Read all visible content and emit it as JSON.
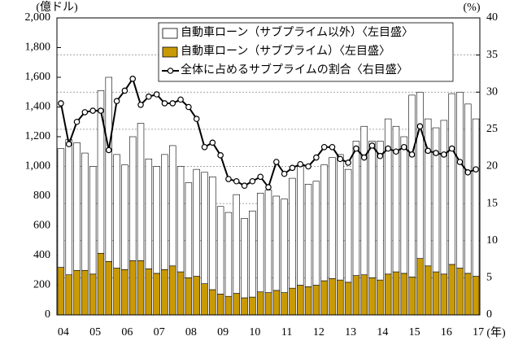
{
  "chart_data": {
    "type": "bar",
    "stacked": true,
    "ylabel": "(億ドル)",
    "y2label": "(%)",
    "xlabel": "(年)",
    "categories": [
      "04",
      null,
      null,
      null,
      "05",
      null,
      null,
      null,
      "06",
      null,
      null,
      null,
      "07",
      null,
      null,
      null,
      "08",
      null,
      null,
      null,
      "09",
      null,
      null,
      null,
      "10",
      null,
      null,
      null,
      "11",
      null,
      null,
      null,
      "12",
      null,
      null,
      null,
      "13",
      null,
      null,
      null,
      "14",
      null,
      null,
      null,
      "15",
      null,
      null,
      null,
      "16",
      null,
      null,
      null,
      "17"
    ],
    "series": [
      {
        "name": "自動車ローン（サブプライム以外）〈左目盛〉",
        "color": "#ffffff",
        "values": [
          800,
          910,
          860,
          790,
          725,
          1095,
          1240,
          765,
          705,
          835,
          925,
          740,
          720,
          775,
          810,
          710,
          640,
          720,
          750,
          760,
          590,
          565,
          665,
          535,
          580,
          665,
          690,
          635,
          630,
          740,
          800,
          690,
          700,
          780,
          815,
          845,
          760,
          905,
          1000,
          920,
          935,
          1045,
          980,
          920,
          1225,
          1120,
          990,
          970,
          1035,
          1150,
          1185,
          1140,
          1060
        ]
      },
      {
        "name": "自動車ローン（サブプライム）〈左目盛〉",
        "color": "#c99a06",
        "values": [
          320,
          270,
          300,
          300,
          275,
          415,
          360,
          315,
          305,
          365,
          365,
          310,
          280,
          305,
          330,
          290,
          250,
          260,
          210,
          170,
          140,
          125,
          145,
          115,
          120,
          155,
          150,
          165,
          150,
          180,
          200,
          190,
          200,
          230,
          245,
          235,
          220,
          265,
          270,
          250,
          235,
          275,
          290,
          280,
          255,
          380,
          330,
          290,
          275,
          340,
          315,
          280,
          260
        ]
      },
      {
        "name": "全体に占めるサブプライムの割合〈右目盛〉",
        "type": "line",
        "axis": "y2",
        "color": "#000000",
        "values": [
          28.5,
          23,
          26,
          27.3,
          27.5,
          27.5,
          22.2,
          28.8,
          30.2,
          31.8,
          28.3,
          29.4,
          29.7,
          28.5,
          28.5,
          29,
          28,
          26.4,
          22.6,
          23.2,
          21.5,
          18.3,
          18,
          17.4,
          18,
          18.6,
          17.2,
          20.6,
          19,
          19.8,
          20.3,
          20,
          21.2,
          22.6,
          22.6,
          21,
          20.5,
          22.4,
          21.2,
          22.8,
          21.4,
          22.4,
          22,
          22.6,
          21.6,
          25.4,
          22.1,
          21.8,
          21.6,
          22.4,
          20.6,
          19.2,
          19.6
        ]
      }
    ],
    "ylim": [
      0,
      2000
    ],
    "yticks": [
      0,
      200,
      400,
      600,
      800,
      {
        "value": 1000,
        "label": "1,000"
      },
      {
        "value": 1200,
        "label": "1,200"
      },
      {
        "value": 1400,
        "label": "1,400"
      },
      {
        "value": 1600,
        "label": "1,600"
      },
      {
        "value": 1800,
        "label": "1,800"
      },
      {
        "value": 2000,
        "label": "2,000"
      }
    ],
    "y2lim": [
      0,
      40
    ],
    "y2ticks": [
      0,
      5,
      10,
      15,
      20,
      25,
      30,
      35,
      40
    ],
    "grid": "y2"
  }
}
